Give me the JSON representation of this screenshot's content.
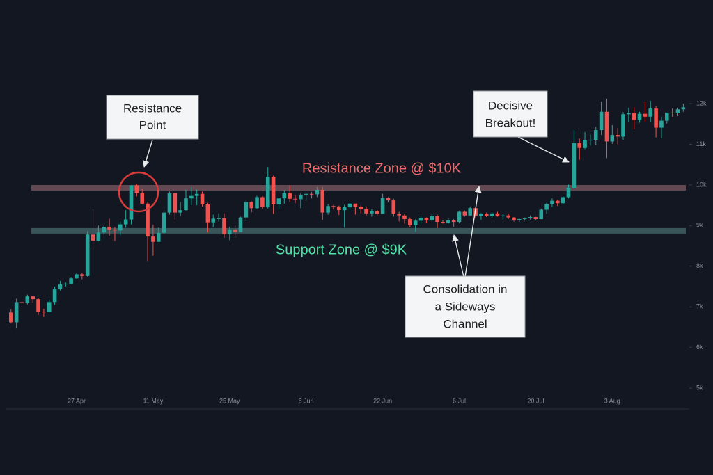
{
  "chart_data": {
    "type": "candlestick",
    "categories": [
      null,
      null,
      null,
      null,
      null,
      null,
      null,
      null,
      null,
      null,
      null,
      null,
      "27 Apr",
      null,
      null,
      null,
      null,
      null,
      null,
      null,
      null,
      null,
      null,
      null,
      null,
      null,
      "11 May",
      null,
      null,
      null,
      null,
      null,
      null,
      null,
      null,
      null,
      null,
      null,
      null,
      null,
      "25 May",
      null,
      null,
      null,
      null,
      null,
      null,
      null,
      null,
      null,
      null,
      null,
      null,
      null,
      "8 Jun",
      null,
      null,
      null,
      null,
      null,
      null,
      null,
      null,
      null,
      null,
      null,
      null,
      null,
      "22 Jun",
      null,
      null,
      null,
      null,
      null,
      null,
      null,
      null,
      null,
      null,
      null,
      null,
      null,
      "6 Jul",
      null,
      null,
      null,
      null,
      null,
      null,
      null,
      null,
      null,
      null,
      null,
      null,
      null,
      "20 Jul",
      null,
      null,
      null,
      null,
      null,
      null,
      null,
      null,
      null,
      null,
      null,
      null,
      null,
      "3 Aug",
      null,
      null,
      null,
      null,
      null,
      null,
      null,
      null,
      null,
      null,
      null,
      null,
      null
    ],
    "open": [
      6860,
      6620,
      7116,
      7096,
      7257,
      7189,
      6882,
      6880,
      7118,
      7430,
      7550,
      7570,
      7700,
      7800,
      7760,
      8780,
      8630,
      8830,
      8970,
      8900,
      8880,
      9030,
      9150,
      9990,
      9810,
      9540,
      8730,
      8600,
      8820,
      9320,
      9800,
      9320,
      9380,
      9670,
      9730,
      9780,
      9520,
      9080,
      9170,
      9180,
      8790,
      8900,
      8840,
      9200,
      9580,
      9430,
      9700,
      9460,
      10200,
      9520,
      9670,
      9800,
      9660,
      9650,
      9760,
      9780,
      9770,
      9880,
      9320,
      9480,
      9470,
      9380,
      9450,
      9540,
      9460,
      9410,
      9300,
      9360,
      9290,
      9680,
      9620,
      9290,
      9250,
      9160,
      9010,
      9120,
      9190,
      9140,
      9230,
      9090,
      9070,
      9130,
      9090,
      9340,
      9250,
      9430,
      9240,
      9290,
      9240,
      9300,
      9240,
      9250,
      9200,
      9140,
      9160,
      9180,
      9210,
      9160,
      9390,
      9530,
      9610,
      9550,
      9700,
      9930,
      11030,
      10910,
      11110,
      11110,
      11350,
      11800,
      11070,
      11230,
      11190,
      11740,
      11770,
      11600,
      11750,
      11680,
      11880,
      11410,
      11580,
      11780,
      11770,
      11860
    ],
    "high": [
      6940,
      7200,
      7150,
      7300,
      7260,
      7220,
      6950,
      7180,
      7500,
      7640,
      7600,
      7720,
      7830,
      7840,
      8860,
      9400,
      9000,
      9010,
      9170,
      8960,
      9100,
      9380,
      9990,
      10030,
      9900,
      9570,
      9020,
      8950,
      9390,
      9840,
      9800,
      9580,
      9880,
      9950,
      9890,
      9840,
      9560,
      9270,
      9300,
      9300,
      8970,
      9000,
      9220,
      9620,
      9600,
      9730,
      9720,
      10440,
      10230,
      9690,
      9870,
      9990,
      9740,
      9800,
      9800,
      9830,
      9950,
      9950,
      9530,
      9510,
      9490,
      9510,
      9560,
      9540,
      9490,
      9470,
      9400,
      9380,
      9780,
      9700,
      9660,
      9340,
      9290,
      9200,
      9150,
      9230,
      9200,
      9290,
      9270,
      9130,
      9180,
      9160,
      9360,
      9370,
      9470,
      9450,
      9310,
      9320,
      9330,
      9340,
      9280,
      9290,
      9210,
      9180,
      9200,
      9250,
      9220,
      9420,
      9560,
      9670,
      9640,
      9720,
      10010,
      11350,
      11140,
      11300,
      11240,
      11430,
      12050,
      12120,
      11470,
      11400,
      11790,
      11900,
      11910,
      11800,
      12050,
      12070,
      11940,
      11680,
      11780,
      11880,
      11900,
      12000
    ],
    "low": [
      6590,
      6470,
      7000,
      7060,
      7100,
      6800,
      6750,
      6860,
      7040,
      7400,
      7500,
      7550,
      7690,
      7680,
      7740,
      8420,
      8620,
      8770,
      8750,
      8620,
      8760,
      8950,
      9030,
      9720,
      9520,
      8110,
      8260,
      8600,
      8800,
      9270,
      9150,
      9230,
      9370,
      9500,
      9500,
      9470,
      8830,
      8960,
      9100,
      8700,
      8640,
      8700,
      8840,
      9110,
      9330,
      9400,
      9410,
      9420,
      9290,
      9410,
      9540,
      9580,
      9550,
      9430,
      9610,
      9670,
      9700,
      9140,
      9270,
      9400,
      9260,
      8950,
      9390,
      9270,
      9300,
      9250,
      9220,
      9240,
      9290,
      9570,
      9220,
      9100,
      9050,
      8960,
      8850,
      9050,
      9070,
      9100,
      8940,
      9050,
      9040,
      8970,
      9060,
      9220,
      9240,
      9180,
      9140,
      9210,
      9200,
      9220,
      9150,
      9160,
      9100,
      9090,
      9120,
      9150,
      9140,
      9150,
      9290,
      9460,
      9480,
      9530,
      9670,
      9900,
      10620,
      10880,
      10970,
      10990,
      11230,
      10660,
      11010,
      11000,
      11110,
      11540,
      11370,
      11530,
      11550,
      11540,
      11170,
      11150,
      11510,
      11680,
      11690,
      11800
    ],
    "close": [
      6620,
      7116,
      7096,
      7257,
      7189,
      6882,
      6880,
      7118,
      7430,
      7550,
      7570,
      7700,
      7800,
      7760,
      8780,
      8630,
      8830,
      8970,
      8900,
      8880,
      9030,
      9150,
      9990,
      9810,
      9540,
      8730,
      8600,
      8820,
      9320,
      9800,
      9320,
      9380,
      9670,
      9730,
      9780,
      9520,
      9080,
      9170,
      9180,
      8790,
      8900,
      8840,
      9200,
      9580,
      9430,
      9700,
      9460,
      10200,
      9520,
      9670,
      9800,
      9660,
      9650,
      9760,
      9780,
      9770,
      9880,
      9320,
      9480,
      9470,
      9380,
      9450,
      9540,
      9460,
      9410,
      9300,
      9360,
      9290,
      9680,
      9620,
      9290,
      9250,
      9160,
      9010,
      9120,
      9190,
      9140,
      9230,
      9090,
      9070,
      9130,
      9090,
      9340,
      9250,
      9430,
      9240,
      9290,
      9240,
      9300,
      9240,
      9250,
      9200,
      9140,
      9160,
      9180,
      9210,
      9160,
      9390,
      9530,
      9610,
      9550,
      9700,
      9930,
      11030,
      10910,
      11110,
      11110,
      11350,
      11800,
      11070,
      11230,
      11190,
      11740,
      11770,
      11600,
      11750,
      11680,
      11880,
      11410,
      11580,
      11780,
      11770,
      11860,
      11910
    ],
    "up_color": "#26a69a",
    "down_color": "#ef5350",
    "ylim": [
      4795,
      12840
    ],
    "yticks": [
      {
        "value": 5000,
        "label": "5k"
      },
      {
        "value": 6000,
        "label": "6k"
      },
      {
        "value": 7000,
        "label": "7k"
      },
      {
        "value": 8000,
        "label": "8k"
      },
      {
        "value": 9000,
        "label": "9k"
      },
      {
        "value": 10000,
        "label": "10k"
      },
      {
        "value": 11000,
        "label": "11k"
      },
      {
        "value": 12000,
        "label": "12k"
      }
    ],
    "zones": [
      {
        "label": "Resistance Zone @ $10K",
        "value": 9930,
        "color": "#6b4f57",
        "text_color": "#f06b6b"
      },
      {
        "label": "Support Zone @ $9K",
        "value": 8870,
        "color": "#3e5c61",
        "text_color": "#4fe3a5"
      }
    ],
    "callouts": [
      {
        "lines": [
          "Resistance",
          "Point"
        ]
      },
      {
        "lines": [
          "Decisive",
          "Breakout!"
        ]
      },
      {
        "lines": [
          "Consolidation in",
          "a Sideways",
          "Channel"
        ]
      }
    ]
  }
}
